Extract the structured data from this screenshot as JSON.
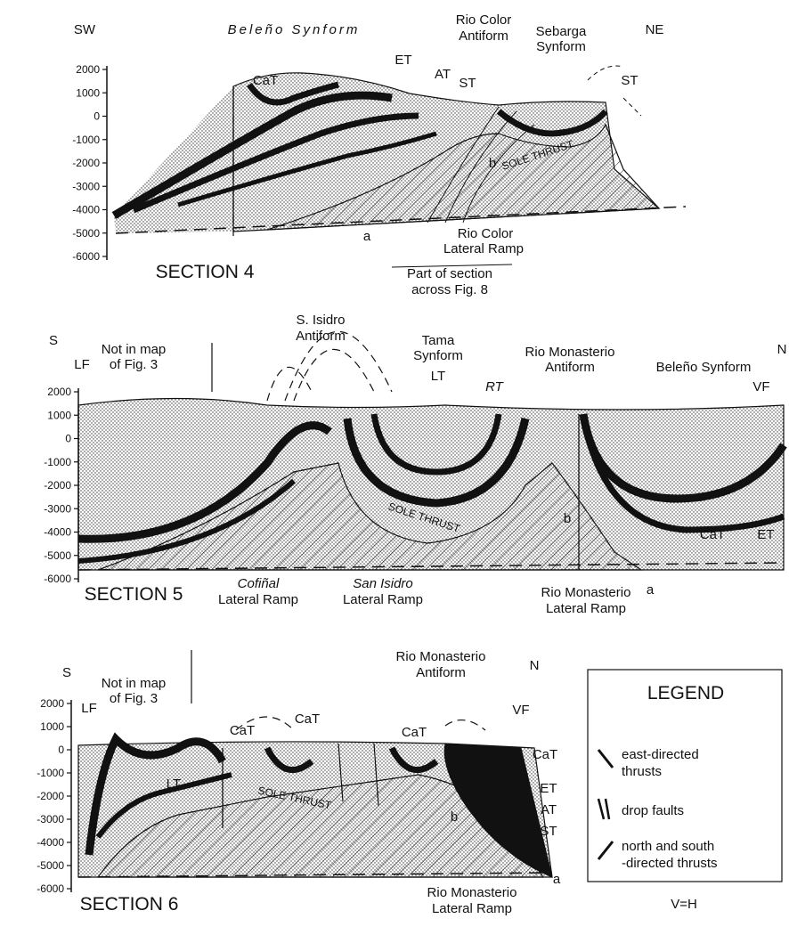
{
  "sections": [
    {
      "title": "SECTION 4",
      "ticks": [
        2000,
        1000,
        0,
        -1000,
        -2000,
        -3000,
        -4000,
        -5000,
        -6000
      ],
      "labels": [
        "SW",
        "Beleño Synform",
        "CaT",
        "ET",
        "AT",
        "ST",
        "Rio Color",
        "Antiform",
        "Sebarga",
        "Synform",
        "NE",
        "ST",
        "b",
        "SOLE THRUST",
        "a",
        "Rio Color",
        "Lateral Ramp",
        "Part of section",
        "across Fig. 8"
      ]
    },
    {
      "title": "SECTION 5",
      "ticks": [
        2000,
        1000,
        0,
        -1000,
        -2000,
        -3000,
        -4000,
        -5000,
        -6000
      ],
      "labels": [
        "S",
        "LF",
        "Not in map",
        "of Fig. 3",
        "S. Isidro",
        "Antiform",
        "Tama",
        "Synform",
        "LT",
        "RT",
        "Rio Monasterio",
        "Antiform",
        "Beleño Synform",
        "N",
        "VF",
        "b",
        "SOLE THRUST",
        "CaT",
        "ET",
        "a",
        "Cofiñal",
        "Lateral Ramp",
        "San Isidro",
        "Lateral Ramp",
        "Rio Monasterio",
        "Lateral Ramp"
      ]
    },
    {
      "title": "SECTION 6",
      "ticks": [
        2000,
        1000,
        0,
        -1000,
        -2000,
        -3000,
        -4000,
        -5000,
        -6000
      ],
      "labels": [
        "S",
        "LF",
        "Not in map",
        "of Fig. 3",
        "CaT",
        "CaT",
        "CaT",
        "Rio Monasterio",
        "Antiform",
        "N",
        "VF",
        "CaT",
        "ET",
        "AT",
        "ST",
        "LT",
        "SOLE THRUST",
        "b",
        "a",
        "Rio Monasterio",
        "Lateral Ramp"
      ]
    }
  ],
  "legend": {
    "title": "LEGEND",
    "items": [
      [
        "east-directed",
        "thrusts"
      ],
      [
        "drop faults"
      ],
      [
        "north and south",
        "-directed thrusts"
      ]
    ],
    "scale": "V=H"
  }
}
